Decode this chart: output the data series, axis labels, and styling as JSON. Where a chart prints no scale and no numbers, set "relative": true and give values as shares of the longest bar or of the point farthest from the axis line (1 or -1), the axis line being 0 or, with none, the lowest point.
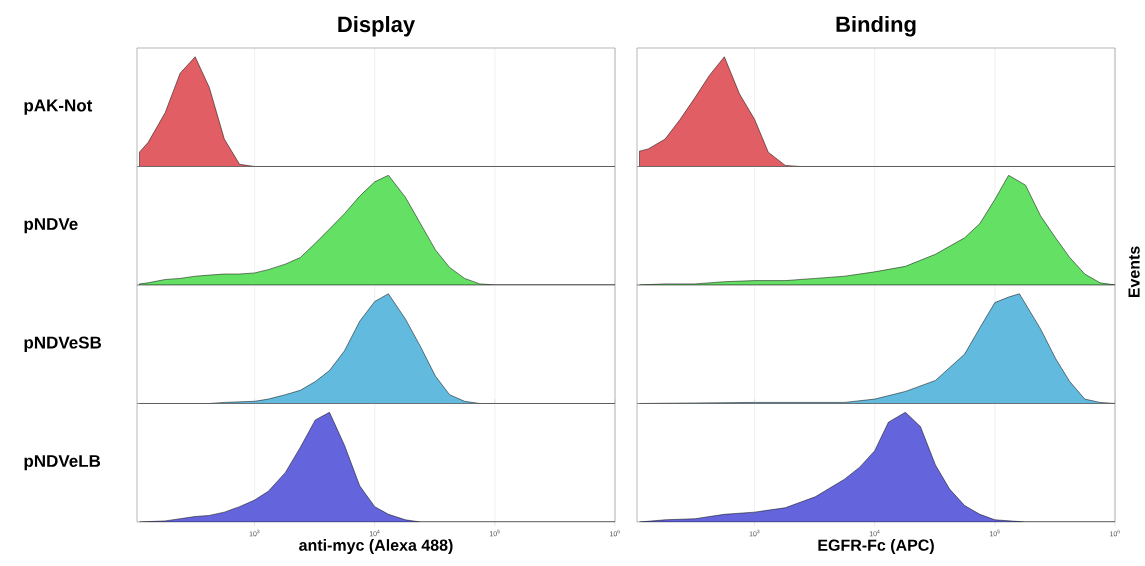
{
  "chart_data": [
    {
      "type": "area",
      "title": "Display",
      "ylabel": "pAK-Not",
      "relative": true,
      "log": "x",
      "grid": "x",
      "tick_labels": false,
      "color": "#e15f64",
      "xlim": [
        105,
        1000000
      ],
      "xticks": [
        {
          "value": 1000,
          "label": null
        },
        {
          "value": 10000,
          "label": null
        },
        {
          "value": 100000,
          "label": null
        },
        {
          "value": 1000000,
          "label": null
        }
      ],
      "x": [
        110,
        130,
        180,
        240,
        320,
        420,
        560,
        750,
        1000,
        1000000
      ],
      "values": [
        0.13,
        0.22,
        0.49,
        0.85,
        1.0,
        0.72,
        0.25,
        0.02,
        0,
        0
      ]
    },
    {
      "type": "area",
      "title": "Binding",
      "relative": true,
      "log": "x",
      "grid": "x",
      "tick_labels": false,
      "color": "#e15f64",
      "xlim": [
        105,
        1000000
      ],
      "xticks": [
        {
          "value": 1000,
          "label": null
        },
        {
          "value": 10000,
          "label": null
        },
        {
          "value": 100000,
          "label": null
        },
        {
          "value": 1000000,
          "label": null
        }
      ],
      "x": [
        110,
        130,
        180,
        240,
        320,
        420,
        560,
        750,
        1000,
        1300,
        1800,
        2400,
        1000000
      ],
      "values": [
        0.14,
        0.16,
        0.25,
        0.43,
        0.63,
        0.83,
        1.0,
        0.66,
        0.43,
        0.13,
        0.01,
        0,
        0
      ]
    },
    {
      "type": "area",
      "ylabel": "pNDVe",
      "relative": true,
      "log": "x",
      "grid": "x",
      "tick_labels": false,
      "color": "#64e064",
      "xlim": [
        105,
        1000000
      ],
      "xticks": [
        {
          "value": 1000,
          "label": null
        },
        {
          "value": 10000,
          "label": null
        },
        {
          "value": 100000,
          "label": null
        },
        {
          "value": 1000000,
          "label": null
        }
      ],
      "x": [
        110,
        130,
        180,
        240,
        320,
        420,
        560,
        750,
        1000,
        1300,
        1800,
        2400,
        3200,
        4200,
        5600,
        7500,
        10000,
        13000,
        18000,
        24000,
        32000,
        42000,
        56000,
        75000,
        100000,
        1000000
      ],
      "values": [
        0.01,
        0.02,
        0.05,
        0.06,
        0.08,
        0.09,
        0.1,
        0.1,
        0.11,
        0.14,
        0.19,
        0.25,
        0.38,
        0.51,
        0.65,
        0.81,
        0.94,
        1.0,
        0.8,
        0.56,
        0.32,
        0.16,
        0.06,
        0.01,
        0,
        0
      ]
    },
    {
      "type": "area",
      "y2label": "Events",
      "relative": true,
      "log": "x",
      "grid": "x",
      "tick_labels": false,
      "color": "#64e064",
      "xlim": [
        105,
        1000000
      ],
      "xticks": [
        {
          "value": 1000,
          "label": null
        },
        {
          "value": 10000,
          "label": null
        },
        {
          "value": 100000,
          "label": null
        },
        {
          "value": 1000000,
          "label": null
        }
      ],
      "x": [
        110,
        180,
        320,
        560,
        1000,
        1800,
        3200,
        5600,
        10000,
        18000,
        32000,
        56000,
        75000,
        100000,
        130000,
        180000,
        240000,
        320000,
        420000,
        560000,
        750000,
        1000000
      ],
      "values": [
        0,
        0.01,
        0.01,
        0.03,
        0.04,
        0.04,
        0.06,
        0.08,
        0.12,
        0.17,
        0.28,
        0.43,
        0.56,
        0.78,
        1.0,
        0.91,
        0.63,
        0.43,
        0.25,
        0.1,
        0.02,
        0
      ]
    },
    {
      "type": "area",
      "ylabel": "pNDVeSB",
      "relative": true,
      "log": "x",
      "grid": "x",
      "tick_labels": false,
      "color": "#62bbdf",
      "xlim": [
        105,
        1000000
      ],
      "xticks": [
        {
          "value": 1000,
          "label": null
        },
        {
          "value": 10000,
          "label": null
        },
        {
          "value": 100000,
          "label": null
        },
        {
          "value": 1000000,
          "label": null
        }
      ],
      "x": [
        110,
        420,
        560,
        750,
        1000,
        1300,
        1800,
        2400,
        3200,
        4200,
        5600,
        7500,
        10000,
        13000,
        18000,
        24000,
        32000,
        42000,
        56000,
        75000,
        1000000
      ],
      "values": [
        0,
        0,
        0.01,
        0.015,
        0.02,
        0.04,
        0.08,
        0.12,
        0.2,
        0.3,
        0.48,
        0.75,
        0.93,
        1.0,
        0.77,
        0.52,
        0.25,
        0.08,
        0.02,
        0,
        0
      ]
    },
    {
      "type": "area",
      "relative": true,
      "log": "x",
      "grid": "x",
      "tick_labels": false,
      "color": "#62bbdf",
      "xlim": [
        105,
        1000000
      ],
      "xticks": [
        {
          "value": 1000,
          "label": null
        },
        {
          "value": 10000,
          "label": null
        },
        {
          "value": 100000,
          "label": null
        },
        {
          "value": 1000000,
          "label": null
        }
      ],
      "x": [
        110,
        1000,
        5600,
        10000,
        18000,
        32000,
        56000,
        75000,
        100000,
        130000,
        160000,
        240000,
        320000,
        420000,
        560000,
        750000,
        1000000
      ],
      "values": [
        0,
        0.01,
        0.01,
        0.04,
        0.11,
        0.21,
        0.45,
        0.69,
        0.92,
        0.97,
        1.0,
        0.68,
        0.41,
        0.2,
        0.04,
        0.01,
        0
      ]
    },
    {
      "type": "area",
      "ylabel": "pNDVeLB",
      "xlabel": "anti-myc (Alexa 488)",
      "relative": true,
      "log": "x",
      "grid": "x",
      "tick_labels": "x",
      "color": "#6464dc",
      "xlim": [
        105,
        1000000
      ],
      "xticks": [
        {
          "value": 1000,
          "label": "10$^{3}$"
        },
        {
          "value": 10000,
          "label": "10$^{4}$"
        },
        {
          "value": 100000,
          "label": "10$^{5}$"
        },
        {
          "value": 1000000,
          "label": "10$^{6}$"
        }
      ],
      "x": [
        110,
        180,
        240,
        320,
        420,
        560,
        750,
        1000,
        1300,
        1800,
        2400,
        3200,
        4200,
        5600,
        7500,
        10000,
        13000,
        18000,
        24000,
        1000000
      ],
      "values": [
        0,
        0.01,
        0.03,
        0.05,
        0.06,
        0.09,
        0.14,
        0.2,
        0.28,
        0.45,
        0.68,
        0.93,
        1.0,
        0.7,
        0.33,
        0.14,
        0.07,
        0.02,
        0,
        0
      ]
    },
    {
      "type": "area",
      "xlabel": "EGFR-Fc (APC)",
      "relative": true,
      "log": "x",
      "grid": "x",
      "tick_labels": "x",
      "color": "#6464dc",
      "xlim": [
        105,
        1000000
      ],
      "xticks": [
        {
          "value": 1000,
          "label": "10$^{3}$"
        },
        {
          "value": 10000,
          "label": "10$^{4}$"
        },
        {
          "value": 100000,
          "label": "10$^{5}$"
        },
        {
          "value": 1000000,
          "label": "10$^{6}$"
        }
      ],
      "x": [
        110,
        180,
        320,
        560,
        1000,
        1800,
        3200,
        5600,
        7500,
        10000,
        13000,
        18000,
        24000,
        32000,
        42000,
        56000,
        75000,
        100000,
        180000,
        1000000
      ],
      "values": [
        0,
        0.02,
        0.03,
        0.07,
        0.09,
        0.13,
        0.23,
        0.39,
        0.5,
        0.65,
        0.91,
        1.0,
        0.87,
        0.52,
        0.3,
        0.15,
        0.07,
        0.02,
        0,
        0
      ]
    }
  ]
}
